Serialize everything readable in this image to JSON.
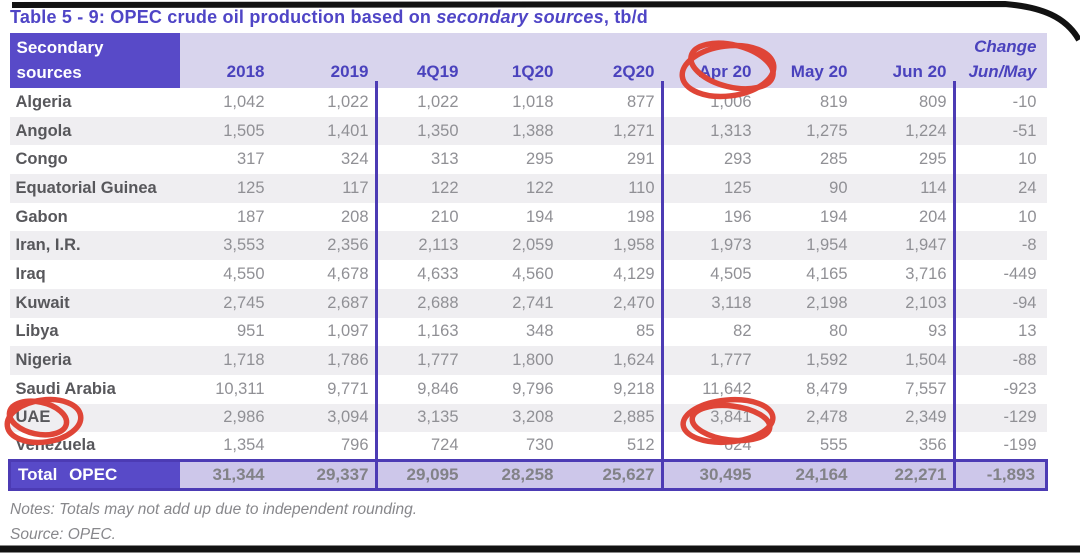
{
  "title": {
    "prefix": "Table 5 - 9: OPEC crude oil production based on ",
    "italic": "secondary sources",
    "suffix": ", tb/d"
  },
  "table": {
    "header": {
      "label_line1": "Secondary",
      "label_line2": "sources",
      "columns": [
        "2018",
        "2019",
        "4Q19",
        "1Q20",
        "2Q20",
        "Apr 20",
        "May 20",
        "Jun 20"
      ],
      "change_line1": "Change",
      "change_line2": "Jun/May"
    },
    "rows": [
      {
        "country": "Algeria",
        "values": [
          "1,042",
          "1,022",
          "1,022",
          "1,018",
          "877",
          "1,006",
          "819",
          "809",
          "-10"
        ]
      },
      {
        "country": "Angola",
        "values": [
          "1,505",
          "1,401",
          "1,350",
          "1,388",
          "1,271",
          "1,313",
          "1,275",
          "1,224",
          "-51"
        ]
      },
      {
        "country": "Congo",
        "values": [
          "317",
          "324",
          "313",
          "295",
          "291",
          "293",
          "285",
          "295",
          "10"
        ]
      },
      {
        "country": "Equatorial Guinea",
        "values": [
          "125",
          "117",
          "122",
          "122",
          "110",
          "125",
          "90",
          "114",
          "24"
        ]
      },
      {
        "country": "Gabon",
        "values": [
          "187",
          "208",
          "210",
          "194",
          "198",
          "196",
          "194",
          "204",
          "10"
        ]
      },
      {
        "country": "Iran, I.R.",
        "values": [
          "3,553",
          "2,356",
          "2,113",
          "2,059",
          "1,958",
          "1,973",
          "1,954",
          "1,947",
          "-8"
        ]
      },
      {
        "country": "Iraq",
        "values": [
          "4,550",
          "4,678",
          "4,633",
          "4,560",
          "4,129",
          "4,505",
          "4,165",
          "3,716",
          "-449"
        ]
      },
      {
        "country": "Kuwait",
        "values": [
          "2,745",
          "2,687",
          "2,688",
          "2,741",
          "2,470",
          "3,118",
          "2,198",
          "2,103",
          "-94"
        ]
      },
      {
        "country": "Libya",
        "values": [
          "951",
          "1,097",
          "1,163",
          "348",
          "85",
          "82",
          "80",
          "93",
          "13"
        ]
      },
      {
        "country": "Nigeria",
        "values": [
          "1,718",
          "1,786",
          "1,777",
          "1,800",
          "1,624",
          "1,777",
          "1,592",
          "1,504",
          "-88"
        ]
      },
      {
        "country": "Saudi Arabia",
        "values": [
          "10,311",
          "9,771",
          "9,846",
          "9,796",
          "9,218",
          "11,642",
          "8,479",
          "7,557",
          "-923"
        ]
      },
      {
        "country": "UAE",
        "values": [
          "2,986",
          "3,094",
          "3,135",
          "3,208",
          "2,885",
          "3,841",
          "2,478",
          "2,349",
          "-129"
        ]
      },
      {
        "country": "Venezuela",
        "values": [
          "1,354",
          "796",
          "724",
          "730",
          "512",
          "624",
          "555",
          "356",
          "-199"
        ]
      }
    ],
    "total": {
      "label": "Total OPEC",
      "values": [
        "31,344",
        "29,337",
        "29,095",
        "28,258",
        "25,627",
        "30,495",
        "24,164",
        "22,271",
        "-1,893"
      ]
    }
  },
  "notes": "Notes: Totals may not add up due to independent rounding.",
  "source": "Source: OPEC.",
  "annotations": {
    "color": "#df4537",
    "circled_items": [
      "Apr 20 column header",
      "UAE row label",
      "UAE Apr 20 value 3,841"
    ]
  },
  "theme_colors": {
    "header_box_purple": "#584ac8",
    "header_band": "#d8d4ed",
    "divider_purple": "#4c3bb4",
    "total_band": "#cdc7ea"
  }
}
